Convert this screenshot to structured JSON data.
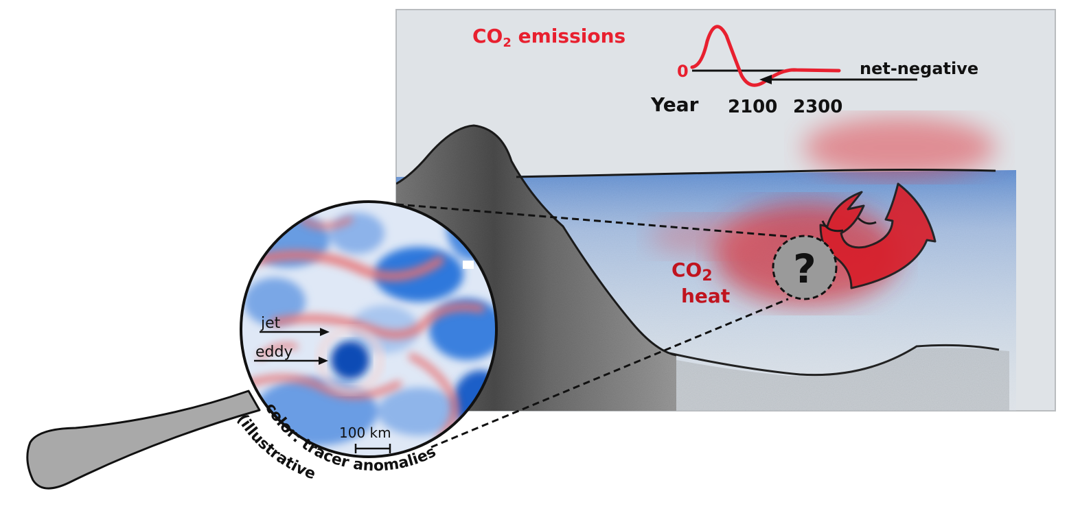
{
  "emissions": {
    "title_prefix": "CO",
    "title_sub": "2",
    "title_suffix": " emissions",
    "zero_label": "0",
    "net_negative_label": "net-negative",
    "axis_label": "Year",
    "tick_2100": "2100",
    "tick_2300": "2300"
  },
  "ocean": {
    "co2_prefix": "CO",
    "co2_sub": "2",
    "heat_label": "heat",
    "question_mark": "?"
  },
  "magnifier": {
    "jet_label": "jet",
    "eddy_label": "eddy",
    "scale_label": "100 km",
    "caption_line1": "color: tracer anomalies",
    "caption_line2": "(illustrative)"
  },
  "colors": {
    "emission_red": "#e8202f",
    "heat_red": "#c0141f",
    "ocean_blue": "#3f7fd0",
    "tracer_blue": "#1f6fd6",
    "handle_gray": "#a9a9a9",
    "question_gray": "#9a9a9a"
  }
}
